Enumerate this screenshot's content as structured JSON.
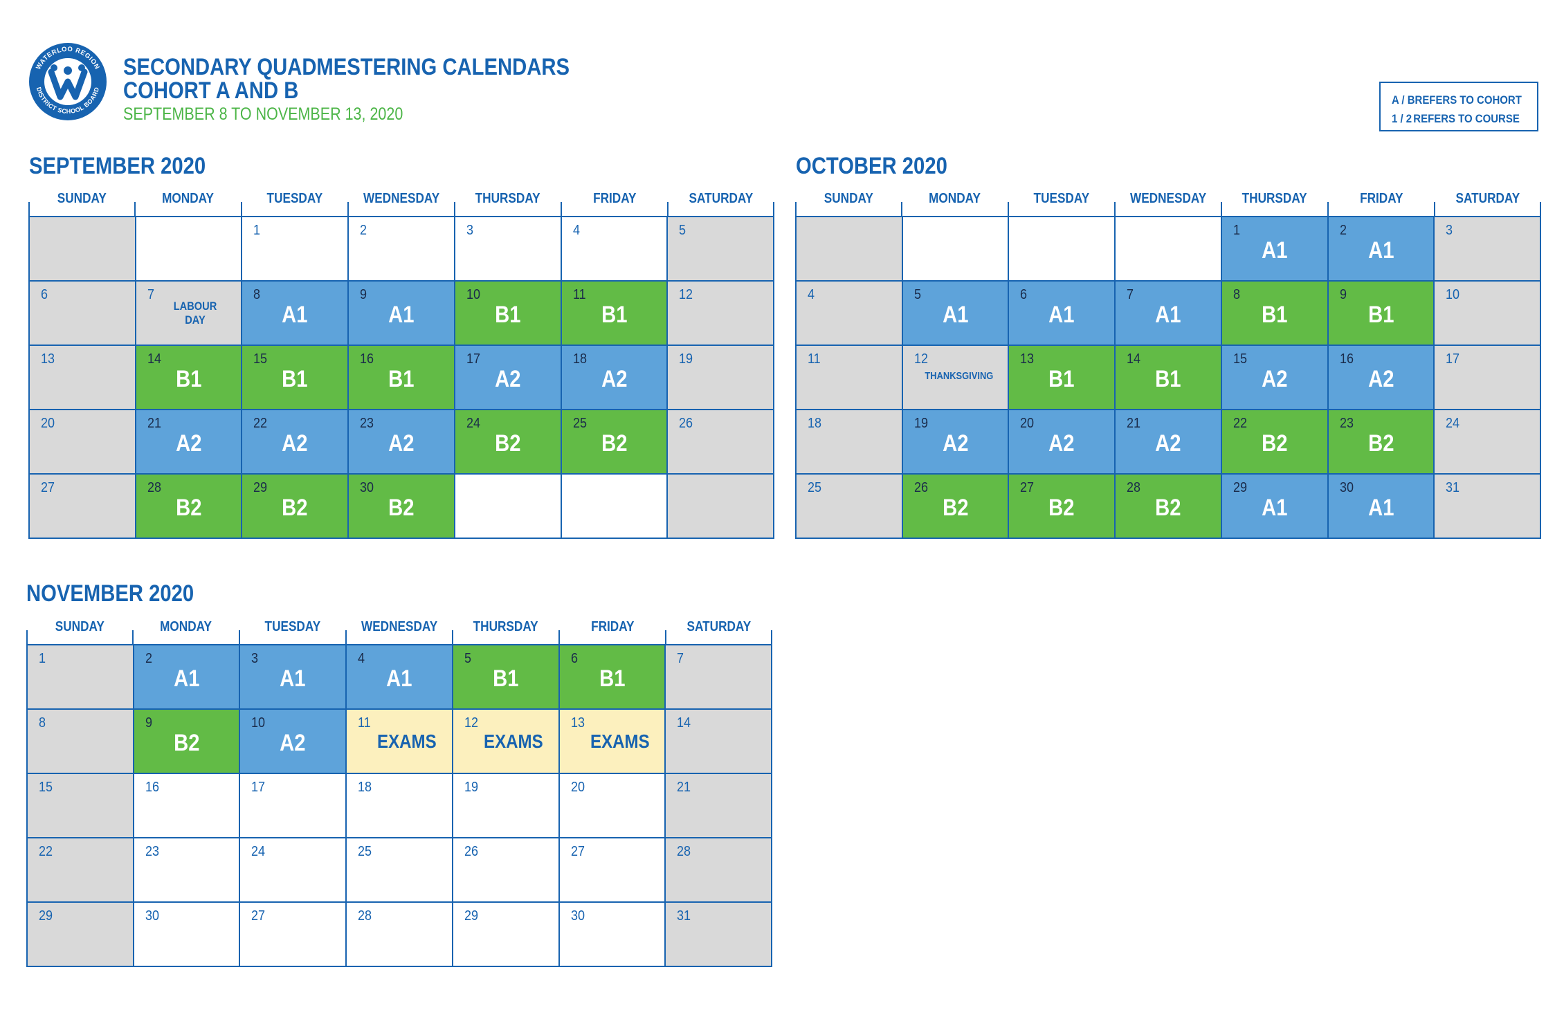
{
  "header": {
    "title_line1": "SECONDARY QUADMESTERING CALENDARS",
    "title_line2": "COHORT A AND B",
    "subtitle": "SEPTEMBER 8 TO NOVEMBER 13, 2020",
    "logo_text": "WATERLOO REGION DISTRICT SCHOOL BOARD"
  },
  "legend": {
    "rows": [
      {
        "key": "A / B",
        "text": "REFERS TO COHORT"
      },
      {
        "key": "1 / 2",
        "text": "REFERS TO COURSE"
      }
    ]
  },
  "colors": {
    "brand_blue": "#1763b0",
    "cohort_a_blue": "#5ea3da",
    "cohort_b_green": "#62bb46",
    "weekend_gray": "#d9d9d9",
    "exam_yellow": "#fcf0be",
    "subtitle_green": "#4cb547"
  },
  "days_of_week": [
    "SUNDAY",
    "MONDAY",
    "TUESDAY",
    "WEDNESDAY",
    "THURSDAY",
    "FRIDAY",
    "SATURDAY"
  ],
  "months": [
    {
      "title": "SEPTEMBER 2020",
      "weeks": [
        [
          {
            "day": "",
            "type": "gray"
          },
          {
            "day": "",
            "type": "white"
          },
          {
            "day": "1",
            "type": "white"
          },
          {
            "day": "2",
            "type": "white"
          },
          {
            "day": "3",
            "type": "white"
          },
          {
            "day": "4",
            "type": "white"
          },
          {
            "day": "5",
            "type": "gray"
          }
        ],
        [
          {
            "day": "6",
            "type": "gray"
          },
          {
            "day": "7",
            "type": "gray",
            "note": "LABOUR DAY"
          },
          {
            "day": "8",
            "type": "blue",
            "code": "A1"
          },
          {
            "day": "9",
            "type": "blue",
            "code": "A1"
          },
          {
            "day": "10",
            "type": "green",
            "code": "B1"
          },
          {
            "day": "11",
            "type": "green",
            "code": "B1"
          },
          {
            "day": "12",
            "type": "gray"
          }
        ],
        [
          {
            "day": "13",
            "type": "gray"
          },
          {
            "day": "14",
            "type": "green",
            "code": "B1"
          },
          {
            "day": "15",
            "type": "green",
            "code": "B1"
          },
          {
            "day": "16",
            "type": "green",
            "code": "B1"
          },
          {
            "day": "17",
            "type": "blue",
            "code": "A2"
          },
          {
            "day": "18",
            "type": "blue",
            "code": "A2"
          },
          {
            "day": "19",
            "type": "gray"
          }
        ],
        [
          {
            "day": "20",
            "type": "gray"
          },
          {
            "day": "21",
            "type": "blue",
            "code": "A2"
          },
          {
            "day": "22",
            "type": "blue",
            "code": "A2"
          },
          {
            "day": "23",
            "type": "blue",
            "code": "A2"
          },
          {
            "day": "24",
            "type": "green",
            "code": "B2"
          },
          {
            "day": "25",
            "type": "green",
            "code": "B2"
          },
          {
            "day": "26",
            "type": "gray"
          }
        ],
        [
          {
            "day": "27",
            "type": "gray"
          },
          {
            "day": "28",
            "type": "green",
            "code": "B2"
          },
          {
            "day": "29",
            "type": "green",
            "code": "B2"
          },
          {
            "day": "30",
            "type": "green",
            "code": "B2"
          },
          {
            "day": "",
            "type": "white"
          },
          {
            "day": "",
            "type": "white"
          },
          {
            "day": "",
            "type": "gray"
          }
        ]
      ]
    },
    {
      "title": "OCTOBER 2020",
      "weeks": [
        [
          {
            "day": "",
            "type": "gray"
          },
          {
            "day": "",
            "type": "white"
          },
          {
            "day": "",
            "type": "white"
          },
          {
            "day": "",
            "type": "white"
          },
          {
            "day": "1",
            "type": "blue",
            "code": "A1"
          },
          {
            "day": "2",
            "type": "blue",
            "code": "A1"
          },
          {
            "day": "3",
            "type": "gray"
          }
        ],
        [
          {
            "day": "4",
            "type": "gray"
          },
          {
            "day": "5",
            "type": "blue",
            "code": "A1"
          },
          {
            "day": "6",
            "type": "blue",
            "code": "A1"
          },
          {
            "day": "7",
            "type": "blue",
            "code": "A1"
          },
          {
            "day": "8",
            "type": "green",
            "code": "B1"
          },
          {
            "day": "9",
            "type": "green",
            "code": "B1"
          },
          {
            "day": "10",
            "type": "gray"
          }
        ],
        [
          {
            "day": "11",
            "type": "gray"
          },
          {
            "day": "12",
            "type": "gray",
            "note": "THANKSGIVING",
            "small": true
          },
          {
            "day": "13",
            "type": "green",
            "code": "B1"
          },
          {
            "day": "14",
            "type": "green",
            "code": "B1"
          },
          {
            "day": "15",
            "type": "blue",
            "code": "A2"
          },
          {
            "day": "16",
            "type": "blue",
            "code": "A2"
          },
          {
            "day": "17",
            "type": "gray"
          }
        ],
        [
          {
            "day": "18",
            "type": "gray"
          },
          {
            "day": "19",
            "type": "blue",
            "code": "A2"
          },
          {
            "day": "20",
            "type": "blue",
            "code": "A2"
          },
          {
            "day": "21",
            "type": "blue",
            "code": "A2"
          },
          {
            "day": "22",
            "type": "green",
            "code": "B2"
          },
          {
            "day": "23",
            "type": "green",
            "code": "B2"
          },
          {
            "day": "24",
            "type": "gray"
          }
        ],
        [
          {
            "day": "25",
            "type": "gray"
          },
          {
            "day": "26",
            "type": "green",
            "code": "B2"
          },
          {
            "day": "27",
            "type": "green",
            "code": "B2"
          },
          {
            "day": "28",
            "type": "green",
            "code": "B2"
          },
          {
            "day": "29",
            "type": "blue",
            "code": "A1"
          },
          {
            "day": "30",
            "type": "blue",
            "code": "A1"
          },
          {
            "day": "31",
            "type": "gray"
          }
        ]
      ]
    },
    {
      "title": "NOVEMBER 2020",
      "weeks": [
        [
          {
            "day": "1",
            "type": "gray"
          },
          {
            "day": "2",
            "type": "blue",
            "code": "A1"
          },
          {
            "day": "3",
            "type": "blue",
            "code": "A1"
          },
          {
            "day": "4",
            "type": "blue",
            "code": "A1"
          },
          {
            "day": "5",
            "type": "green",
            "code": "B1"
          },
          {
            "day": "6",
            "type": "green",
            "code": "B1"
          },
          {
            "day": "7",
            "type": "gray"
          }
        ],
        [
          {
            "day": "8",
            "type": "gray"
          },
          {
            "day": "9",
            "type": "green",
            "code": "B2"
          },
          {
            "day": "10",
            "type": "blue",
            "code": "A2"
          },
          {
            "day": "11",
            "type": "yellow",
            "exams": "EXAMS"
          },
          {
            "day": "12",
            "type": "yellow",
            "exams": "EXAMS"
          },
          {
            "day": "13",
            "type": "yellow",
            "exams": "EXAMS"
          },
          {
            "day": "14",
            "type": "gray"
          }
        ],
        [
          {
            "day": "15",
            "type": "gray"
          },
          {
            "day": "16",
            "type": "white"
          },
          {
            "day": "17",
            "type": "white"
          },
          {
            "day": "18",
            "type": "white"
          },
          {
            "day": "19",
            "type": "white"
          },
          {
            "day": "20",
            "type": "white"
          },
          {
            "day": "21",
            "type": "gray"
          }
        ],
        [
          {
            "day": "22",
            "type": "gray"
          },
          {
            "day": "23",
            "type": "white"
          },
          {
            "day": "24",
            "type": "white"
          },
          {
            "day": "25",
            "type": "white"
          },
          {
            "day": "26",
            "type": "white"
          },
          {
            "day": "27",
            "type": "white"
          },
          {
            "day": "28",
            "type": "gray"
          }
        ],
        [
          {
            "day": "29",
            "type": "gray"
          },
          {
            "day": "30",
            "type": "white"
          },
          {
            "day": "27",
            "type": "white"
          },
          {
            "day": "28",
            "type": "white"
          },
          {
            "day": "29",
            "type": "white"
          },
          {
            "day": "30",
            "type": "white"
          },
          {
            "day": "31",
            "type": "gray"
          }
        ]
      ]
    }
  ]
}
